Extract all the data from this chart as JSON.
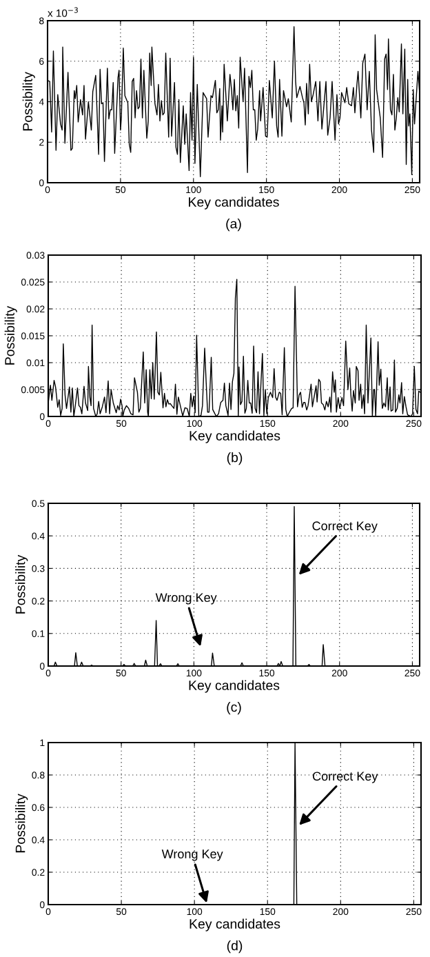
{
  "chart_data": [
    {
      "type": "line",
      "title": "(a)",
      "xlabel": "Key candidates",
      "ylabel": "Possibility",
      "annotations": [
        "x 10$^{−3}$"
      ],
      "xlim": [
        0,
        255
      ],
      "xticks": [
        0,
        50,
        100,
        150,
        200,
        250
      ],
      "ylim": [
        0,
        8
      ],
      "yticks": [
        0,
        2,
        4,
        6,
        8
      ],
      "grid": true,
      "series": [
        {
          "color": "#000000",
          "x": [
            0,
            1.5,
            2.8,
            4,
            5.8,
            7,
            8.9,
            10,
            10.4,
            11.9,
            14,
            16,
            17,
            18.3,
            19,
            20,
            21,
            22.6,
            24,
            25,
            26,
            28,
            30,
            31,
            33,
            35,
            36,
            37,
            38,
            39,
            41,
            42,
            43,
            44,
            45,
            46,
            48.3,
            49,
            50,
            50.6,
            51.9,
            53,
            55,
            56,
            57,
            58,
            59,
            60,
            61,
            62,
            63,
            64,
            65,
            66,
            68,
            69,
            70,
            71,
            71.5,
            73.6,
            75,
            76,
            77,
            78,
            79,
            80,
            81,
            83,
            84,
            85,
            87,
            88,
            89,
            90,
            91,
            93,
            94,
            95,
            97,
            98,
            99,
            100,
            101,
            102.6,
            104.7,
            106.6,
            109,
            110,
            112,
            113,
            115,
            116,
            117,
            118,
            118.5,
            119.5,
            120,
            121,
            123.2,
            125,
            126,
            127,
            128,
            129,
            130,
            131,
            132,
            134,
            135,
            137,
            138,
            139,
            140,
            141,
            142,
            143,
            144,
            145.3,
            146,
            147.7,
            149.4,
            150.5,
            152,
            154,
            155.5,
            157,
            158,
            159,
            160.6,
            161.7,
            163.8,
            165,
            167,
            168.9,
            170,
            170.8,
            173,
            174.7,
            175.7,
            176.6,
            177.5,
            178.7,
            179.6,
            180.8,
            182,
            183.8,
            185.3,
            186.6,
            188,
            190.8,
            192,
            193.6,
            195,
            197,
            198.3,
            199.4,
            200.4,
            201.5,
            203.8,
            205,
            206.4,
            208.3,
            209.6,
            210.6,
            212,
            212.8,
            214.7,
            216,
            217.5,
            219,
            220.5,
            222,
            223.5,
            224.5,
            225.5,
            228,
            229.6,
            231,
            232,
            233,
            233.6,
            235,
            236,
            237,
            238,
            239,
            240,
            241,
            242.5,
            243.5,
            244.8,
            245.8,
            246.8,
            247.5,
            248.3,
            249.6,
            250.6,
            251.5,
            253.8,
            255
          ],
          "values": [
            5.05,
            5.0,
            2.5,
            6.5,
            1.6,
            4.35,
            2.9,
            2.6,
            6.7,
            1.95,
            5.45,
            1.6,
            1.7,
            4.55,
            4.15,
            4.8,
            3.0,
            4.1,
            3.35,
            4.8,
            2.15,
            4.0,
            2.6,
            4.5,
            5.3,
            1.4,
            5.6,
            3.9,
            3.95,
            1.05,
            5.65,
            3.15,
            3.6,
            3.6,
            4.95,
            1.45,
            5.2,
            5.55,
            2.6,
            3.25,
            6.65,
            4.3,
            3.95,
            1.9,
            1.5,
            5.0,
            5.15,
            3.2,
            4.55,
            3.65,
            3.75,
            6.1,
            3.2,
            5.55,
            2.2,
            3.05,
            6.4,
            4.8,
            6.7,
            3.9,
            3.35,
            4.85,
            3.05,
            4.05,
            3.35,
            3.45,
            6.4,
            2.25,
            6.15,
            2.3,
            4.95,
            1.75,
            1.4,
            4.1,
            1.0,
            3.8,
            1.9,
            3.4,
            0.6,
            4.45,
            2.1,
            6.2,
            0.95,
            4.85,
            0.3,
            4.45,
            4.15,
            2.25,
            4.3,
            4.2,
            5.05,
            3.45,
            3.6,
            4.65,
            2.1,
            3.8,
            2.5,
            5.85,
            3.05,
            5.35,
            4.65,
            3.6,
            5.1,
            3.55,
            4.3,
            2.7,
            6.2,
            4.0,
            5.65,
            0.5,
            5.25,
            4.7,
            5.55,
            3.6,
            3.6,
            2.1,
            2.65,
            4.55,
            3.05,
            4.7,
            2.3,
            2.25,
            5.05,
            3.2,
            6.0,
            2.8,
            2.25,
            5.1,
            2.3,
            4.55,
            3.75,
            4.15,
            3.0,
            7.7,
            5.0,
            4.2,
            4.75,
            4.2,
            3.95,
            2.85,
            4.9,
            3.4,
            5.85,
            4.0,
            4.35,
            5.0,
            3.05,
            5.0,
            2.65,
            5.0,
            2.35,
            3.2,
            5.0,
            2.1,
            4.35,
            2.9,
            3.2,
            4.45,
            3.95,
            4.7,
            3.9,
            3.8,
            4.7,
            3.45,
            4.85,
            5.5,
            3.2,
            5.9,
            6.35,
            3.6,
            5.5,
            2.6,
            1.5,
            7.3,
            4.6,
            3.2,
            1.25,
            6.1,
            6.35,
            4.6,
            7.1,
            3.6,
            3.35,
            5.35,
            2.6,
            3.2,
            4.2,
            3.5,
            6.85,
            3.4,
            6.6,
            0.9,
            5.1,
            2.8,
            3.4,
            0.4,
            4.6,
            2.9,
            5.5,
            4.4
          ]
        }
      ]
    },
    {
      "type": "line",
      "title": "(b)",
      "xlabel": "Key candidates",
      "ylabel": "Possibility",
      "xlim": [
        0,
        255
      ],
      "xticks": [
        0,
        50,
        100,
        150,
        200,
        250
      ],
      "ylim": [
        0,
        0.03
      ],
      "yticks": [
        0,
        0.005,
        0.01,
        0.015,
        0.02,
        0.025,
        0.03
      ],
      "grid": true,
      "series": [
        {
          "color": "#000000",
          "x": [
            0,
            1.5,
            2.5,
            4,
            5,
            6.5,
            7.5,
            8.5,
            9.5,
            10.3,
            11.5,
            12.5,
            14.5,
            15.5,
            16.5,
            17.5,
            18.5,
            20,
            21,
            22,
            23,
            24.5,
            25.5,
            27,
            27.5,
            28.5,
            29.3,
            30,
            31,
            32.5,
            33.5,
            34.5,
            35.5,
            37,
            38.5,
            39.5,
            41,
            42,
            43,
            44.5,
            46.5,
            47.5,
            48.5,
            49.5,
            50.5,
            51,
            52,
            53.5,
            55,
            56.5,
            58,
            59,
            61,
            62,
            63,
            65,
            66,
            67,
            68,
            68.5,
            69.5,
            70.5,
            71.5,
            72.5,
            74,
            75,
            76,
            77,
            78.5,
            79.5,
            80.5,
            81.5,
            82.5,
            83.5,
            84.5,
            86,
            87,
            88,
            89,
            90.5,
            92,
            93.5,
            95,
            96.5,
            97.5,
            98.5,
            99.5,
            100.5,
            101.5,
            103,
            104.5,
            105.5,
            107,
            108,
            109,
            110,
            111.5,
            112.5,
            114,
            115,
            116.5,
            118,
            119.5,
            120.5,
            121.5,
            123,
            124,
            125,
            126,
            127,
            128,
            129,
            130,
            130.5,
            131.5,
            132.5,
            133.5,
            134.5,
            135.5,
            136.5,
            137.5,
            138.5,
            139.5,
            140.5,
            141.5,
            142.5,
            143.5,
            144.5,
            146.5,
            147.5,
            148.5,
            149.5,
            150.5,
            152,
            153.5,
            154.5,
            155.5,
            156.5,
            158,
            159,
            160,
            161.5,
            162.5,
            163.5,
            165,
            166.5,
            167.5,
            168.8,
            170.5,
            171.6,
            172.6,
            173.7,
            174.7,
            175.6,
            176.8,
            177.7,
            179.8,
            180.7,
            183.2,
            183.9,
            185,
            186,
            186.9,
            188.1,
            189.2,
            190.3,
            191.5,
            192.6,
            193.4,
            194.5,
            195.6,
            196.4,
            197.1,
            198.3,
            199.4,
            200.9,
            202,
            203.5,
            205,
            206.2,
            207,
            207.9,
            208.8,
            210,
            210.7,
            211.9,
            212.6,
            213.7,
            214.5,
            215.6,
            216.4,
            217.5,
            218.7,
            220.7,
            221.7,
            222.6,
            223.2,
            224,
            225.6,
            226.4,
            227.5,
            228.5,
            229.6,
            230.7,
            231.9,
            232.6,
            233.8,
            234.5,
            235.7,
            236.8,
            237.5,
            238.7,
            239.8,
            240.6,
            241.7,
            242.5,
            243.6,
            244.7,
            245.8,
            248.1,
            249.2,
            250.4,
            251.5,
            252.6,
            253.4,
            254.4
          ],
          "values": [
            0.0025,
            0.0058,
            0.003,
            0.0067,
            0.0055,
            0.0017,
            0.0031,
            0.0002,
            0.0015,
            0.0135,
            0.004,
            0.0015,
            0.0055,
            0.0008,
            0.0053,
            0,
            0.002,
            0.0053,
            0.002,
            0.0017,
            0.0005,
            0.0056,
            0.0025,
            0.0011,
            0.0093,
            0.0035,
            0.002,
            0.017,
            0.0015,
            0,
            0.0005,
            0.0028,
            0.0005,
            0.0018,
            0.0036,
            0.0007,
            0.0066,
            0.0005,
            0.005,
            0.0025,
            0.0007,
            0.002,
            0.0012,
            0.0032,
            0.002,
            0,
            0.0012,
            0.002,
            0.0015,
            0.0005,
            0.0003,
            0.0072,
            0.0045,
            0.0008,
            0.0015,
            0.012,
            0.0025,
            0.0087,
            0.0008,
            0,
            0.0087,
            0.0033,
            0.01,
            0.0032,
            0.0157,
            0.0045,
            0.004,
            0.0082,
            0.0016,
            0.0043,
            0.0018,
            0.0031,
            0.0023,
            0.0024,
            0.002,
            0.0015,
            0.006,
            0.0004,
            0.0036,
            0.0018,
            0.0001,
            0.0016,
            0.0015,
            0,
            0.0043,
            0.0018,
            0.0038,
            0.0007,
            0.0151,
            0,
            0.0002,
            0.002,
            0.0127,
            0.0065,
            0.0008,
            0.0008,
            0.011,
            0.0013,
            0.0005,
            0,
            0.0005,
            0.0026,
            0.003,
            0.0062,
            0.002,
            0.0002,
            0.0062,
            0.0013,
            0.0065,
            0.008,
            0.022,
            0.0255,
            0,
            0.0092,
            0.0022,
            0.0028,
            0.0112,
            0.0006,
            0.0015,
            0.0067,
            0.0025,
            0.0025,
            0.0006,
            0.0131,
            0.0015,
            0.0007,
            0.0083,
            0.0005,
            0.0117,
            0.0002,
            0.005,
            0.0005,
            0.0035,
            0.0045,
            0.0035,
            0.0089,
            0.0036,
            0.003,
            0.0045,
            0.0043,
            0.0003,
            0.0128,
            0.0013,
            0,
            0.0008,
            0.0015,
            0.0016,
            0.0242,
            0.0018,
            0.004,
            0.0045,
            0.0017,
            0.0026,
            0.0026,
            0.0012,
            0.002,
            0.006,
            0.0018,
            0.0057,
            0.0027,
            0.0069,
            0.0065,
            0.0025,
            0.0022,
            0.0012,
            0.0028,
            0.0018,
            0.0036,
            0.0008,
            0.0083,
            0.0045,
            0.0068,
            0.0008,
            0.0035,
            0.0015,
            0.0035,
            0.002,
            0.014,
            0.005,
            0.009,
            0.004,
            0.001,
            0.0048,
            0.0025,
            0.0093,
            0.0085,
            0.003,
            0.006,
            0.0015,
            0.004,
            0.0005,
            0.017,
            0.0025,
            0.0146,
            0,
            0.005,
            0.005,
            0,
            0.0139,
            0.0058,
            0.0088,
            0.0015,
            0.0025,
            0.0018,
            0.0072,
            0.0012,
            0.0055,
            0.001,
            0.0012,
            0.0105,
            0.0008,
            0.0015,
            0.004,
            0.0025,
            0.0063,
            0.0005,
            0.0037,
            0.0018,
            0.0003,
            0,
            0.0005,
            0.0093,
            0.0013,
            0.0005,
            0.0047,
            0.0045
          ]
        }
      ]
    },
    {
      "type": "line",
      "title": "(c)",
      "xlabel": "Key candidates",
      "ylabel": "Possibility",
      "annotations": [
        "Wrong Key",
        {
          "text": "Correct Key",
          "x": 172,
          "y": 0.28
        }
      ],
      "xlim": [
        0,
        255
      ],
      "xticks": [
        0,
        50,
        100,
        150,
        200,
        250
      ],
      "ylim": [
        0,
        0.5
      ],
      "yticks": [
        0,
        0.1,
        0.2,
        0.3,
        0.4,
        0.5
      ],
      "grid": true,
      "series": [
        {
          "color": "#000000",
          "x": [
            0,
            4,
            4.9,
            6,
            18,
            18.9,
            20,
            22,
            22.9,
            24,
            29,
            29.7,
            31,
            51,
            52,
            53,
            58,
            59,
            60,
            66,
            66.9,
            68,
            73,
            74.1,
            75,
            76,
            77.1,
            78,
            88,
            89,
            90,
            112,
            112.8,
            114,
            132,
            133,
            134,
            157,
            158,
            159,
            159.9,
            161,
            168,
            168.9,
            170,
            178,
            179,
            180,
            188,
            188.8,
            190,
            255
          ],
          "values": [
            0,
            0,
            0.012,
            0,
            0,
            0.041,
            0,
            0,
            0.012,
            0,
            0,
            0.003,
            0,
            0,
            0.005,
            0,
            0,
            0.008,
            0,
            0,
            0.018,
            0,
            0,
            0.14,
            0,
            0,
            0.007,
            0,
            0,
            0.007,
            0,
            0,
            0.04,
            0,
            0,
            0.01,
            0,
            0,
            0.008,
            0,
            0.014,
            0,
            0,
            0.49,
            0,
            0,
            0.005,
            0,
            0,
            0.066,
            0,
            0
          ]
        }
      ]
    },
    {
      "type": "line",
      "title": "(d)",
      "xlabel": "Key candidates",
      "ylabel": "Possibility",
      "annotations": [
        {
          "text": "Wrong Key",
          "x": 108.4,
          "y": 0.01
        },
        {
          "text": "Correct Key",
          "x": 171.6,
          "y": 0.49
        }
      ],
      "xlim": [
        0,
        255
      ],
      "xticks": [
        0,
        50,
        100,
        150,
        200,
        250
      ],
      "ylim": [
        0,
        1
      ],
      "yticks": [
        0,
        0.2,
        0.4,
        0.6,
        0.8,
        1
      ],
      "grid": true,
      "series": [
        {
          "color": "#000000",
          "x": [
            0,
            168,
            168.8,
            170,
            255
          ],
          "values": [
            0,
            0,
            1,
            0,
            0
          ]
        }
      ]
    }
  ]
}
